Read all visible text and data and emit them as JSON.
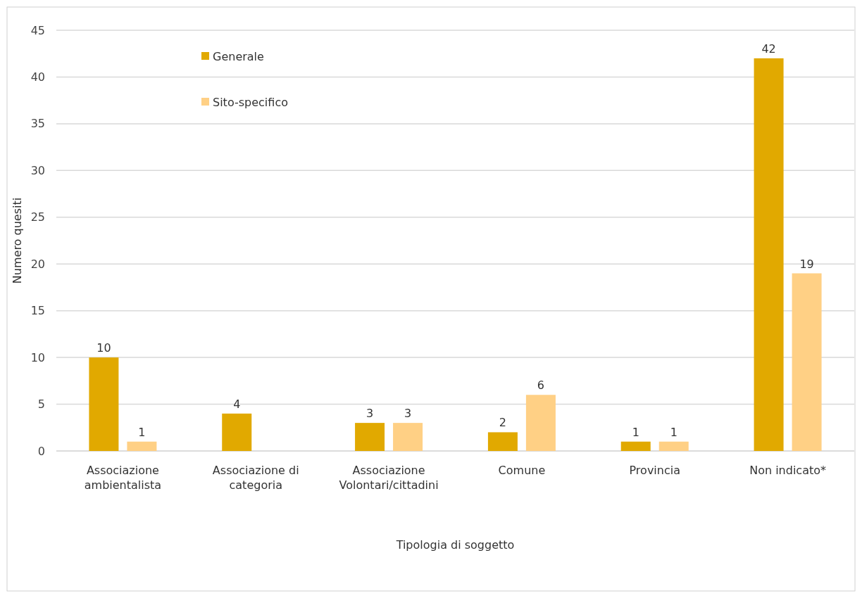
{
  "chart_data": {
    "type": "bar",
    "xlabel": "Tipologia di soggetto",
    "ylabel": "Numero quesiti",
    "categories": [
      "Associazione ambientalista",
      "Associazione di categoria",
      "Associazione Volontari/cittadini",
      "Comune",
      "Provincia",
      "Non indicato*"
    ],
    "series": [
      {
        "name": "Generale",
        "color": "#e1a900",
        "values": [
          10,
          4,
          3,
          2,
          1,
          42
        ]
      },
      {
        "name": "Sito-specifico",
        "color": "#ffd085",
        "values": [
          1,
          null,
          3,
          6,
          1,
          19
        ]
      }
    ],
    "ylim": [
      0,
      45
    ],
    "yticks": [
      0,
      5,
      10,
      15,
      20,
      25,
      30,
      35,
      40,
      45
    ],
    "grid": "y",
    "legend": "top left",
    "data_labels": true
  }
}
